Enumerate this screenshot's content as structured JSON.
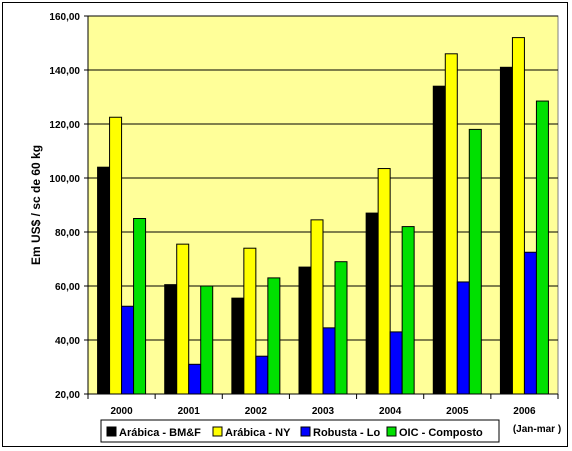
{
  "chart_data": {
    "type": "bar",
    "categories": [
      "2000",
      "2001",
      "2002",
      "2003",
      "2004",
      "2005",
      "2006"
    ],
    "category_note": "(Jan-mar )",
    "series": [
      {
        "name": "Arábica - BM&F",
        "color": "#000000",
        "values": [
          104,
          60.5,
          55.5,
          67,
          87,
          134,
          141
        ]
      },
      {
        "name": "Arábica - NY",
        "color": "#ffff00",
        "values": [
          122.5,
          75.5,
          74,
          84.5,
          103.5,
          146,
          152
        ]
      },
      {
        "name": "Robusta - Lo",
        "color": "#0000ff",
        "values": [
          52.5,
          31,
          34,
          44.5,
          43,
          61.5,
          72.5
        ]
      },
      {
        "name": "OIC - Composto",
        "color": "#00e000",
        "values": [
          85,
          60,
          63,
          69,
          82,
          118,
          128.5
        ]
      }
    ],
    "ylabel": "Em US$ / sc de 60 kg",
    "ylim": [
      20,
      160
    ],
    "y_ticks": [
      "20,00",
      "40,00",
      "60,00",
      "80,00",
      "100,00",
      "120,00",
      "140,00",
      "160,00"
    ],
    "plot_background": "#ffff99",
    "grid": true,
    "legend_position": "bottom"
  }
}
